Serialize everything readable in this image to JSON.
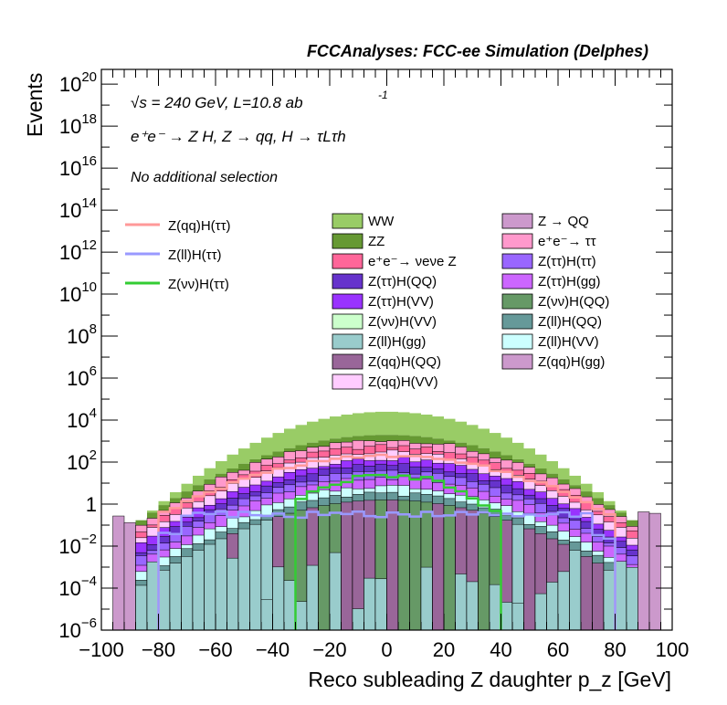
{
  "chart_data": {
    "type": "histogram",
    "title": "FCCAnalyses: FCC-ee Simulation (Delphes)",
    "xlabel": "Reco subleading Z daughter p_z [GeV]",
    "ylabel": "Events",
    "xlim": [
      -100,
      100
    ],
    "ylim_log10": [
      -6,
      20.7
    ],
    "log_y": true,
    "grid": false,
    "x_ticks": [
      "−100",
      "−80",
      "−60",
      "−40",
      "−20",
      "0",
      "20",
      "40",
      "60",
      "80",
      "100"
    ],
    "y_ticks": [
      {
        "base": "10",
        "exp": "20"
      },
      {
        "base": "10",
        "exp": "18"
      },
      {
        "base": "10",
        "exp": "16"
      },
      {
        "base": "10",
        "exp": "14"
      },
      {
        "base": "10",
        "exp": "12"
      },
      {
        "base": "10",
        "exp": "10"
      },
      {
        "base": "10",
        "exp": "8"
      },
      {
        "base": "10",
        "exp": "6"
      },
      {
        "base": "10",
        "exp": "4"
      },
      {
        "base": "10",
        "exp": "2"
      },
      {
        "base": "1",
        "exp": ""
      },
      {
        "base": "10",
        "exp": "−2"
      },
      {
        "base": "10",
        "exp": "−4"
      },
      {
        "base": "10",
        "exp": "−6"
      }
    ],
    "annotations": {
      "energy": "√s = 240 GeV, L=10.8 ab",
      "energy_exp": "-1",
      "process": "e⁺e⁻ → Z H, Z → qq, H → τLτh",
      "selection": "No additional selection"
    },
    "stack_series": [
      {
        "name": "WW",
        "color": "#99cc66"
      },
      {
        "name": "ZZ",
        "color": "#669933"
      },
      {
        "name": "Z(ττ)H(QQ)",
        "color": "#6633cc"
      },
      {
        "name": "Z(νν)H(QQ)",
        "color": "#669966"
      },
      {
        "name": "e⁺e⁻→ νeνe Z",
        "color": "#ff6699"
      },
      {
        "name": "Z → QQ",
        "color": "#cc99cc"
      },
      {
        "name": "e⁺e⁻→ ττ",
        "color": "#ff99cc"
      },
      {
        "name": "Z(qq)H(QQ)",
        "color": "#996699"
      },
      {
        "name": "Z(ll)H(QQ)",
        "color": "#669999"
      },
      {
        "name": "Z(ττ)H(ττ)",
        "color": "#9966ff"
      },
      {
        "name": "Z(ττ)H(gg)",
        "color": "#cc66ff"
      },
      {
        "name": "Z(ττ)H(VV)",
        "color": "#9933ff"
      },
      {
        "name": "Z(qq)H(gg)",
        "color": "#cc99cc"
      },
      {
        "name": "Z(νν)H(VV)",
        "color": "#ccffcc"
      },
      {
        "name": "Z(ll)H(VV)",
        "color": "#ccffff"
      },
      {
        "name": "Z(qq)H(VV)",
        "color": "#ffccff"
      },
      {
        "name": "Z(ll)H(gg)",
        "color": "#99cccc"
      }
    ],
    "line_series": [
      {
        "name": "Z(qq)H(ττ)",
        "color": "#ff9999"
      },
      {
        "name": "Z(ll)H(ττ)",
        "color": "#9999ff"
      },
      {
        "name": "Z(νν)H(ττ)",
        "color": "#33cc33"
      }
    ],
    "legend_left": [
      "Z(qq)H(ττ)",
      "Z(ll)H(ττ)",
      "Z(νν)H(ττ)"
    ],
    "legend_col1": [
      "WW",
      "ZZ",
      "e⁺e⁻→ νeνe Z",
      "Z(ττ)H(QQ)",
      "Z(ττ)H(VV)",
      "Z(νν)H(VV)",
      "Z(ll)H(gg)",
      "Z(qq)H(QQ)",
      "Z(qq)H(VV)"
    ],
    "legend_col2": [
      "Z → QQ",
      "e⁺e⁻→ ττ",
      "Z(ττ)H(ττ)",
      "Z(ττ)H(gg)",
      "Z(νν)H(QQ)",
      "Z(ll)H(QQ)",
      "Z(ll)H(VV)",
      "Z(qq)H(gg)"
    ],
    "envelopes_log10": {
      "WW_top": "4.4 - 0.0007*x^2",
      "ZZ_top": "3.3 - 0.00055*x^2",
      "ZZ_range": [
        -97,
        97
      ],
      "WW_range": [
        -97,
        97
      ]
    }
  }
}
